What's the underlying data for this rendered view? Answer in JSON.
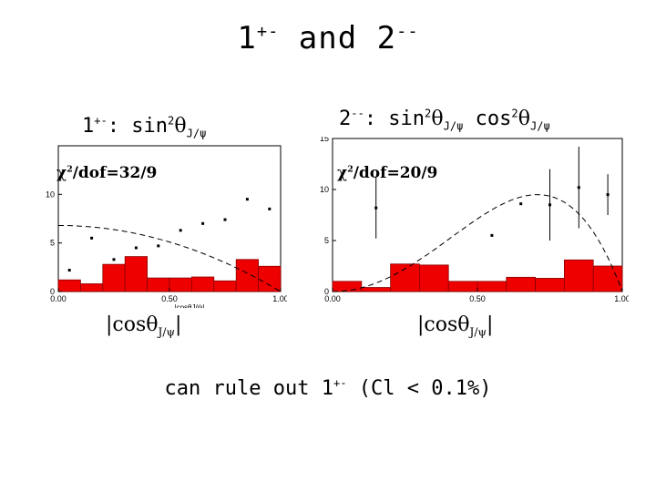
{
  "slide": {
    "title_part1": "1",
    "title_sup1": "+-",
    "title_and": " and 2",
    "title_sup2": "--"
  },
  "left": {
    "label_prefix": "1",
    "label_sup": "+-",
    "label_mid": ": sin",
    "label_sup2": "2",
    "label_theta": "θ",
    "label_sub": "J/ψ",
    "chi_prefix": "χ",
    "chi_sup": "2",
    "chi_rest": "/dof=32/9",
    "axis_cos": "|cosθ",
    "axis_sub": "J/ψ",
    "axis_end": "|"
  },
  "right": {
    "label_prefix": "2",
    "label_sup": "--",
    "label_mid": ": sin",
    "label_sup2": "2",
    "label_theta": "θ",
    "label_sub": "J/ψ",
    "label_cos": " cos",
    "label_sup3": "2",
    "label_theta2": "θ",
    "label_sub2": "J/ψ",
    "chi_prefix": "χ",
    "chi_sup": "2",
    "chi_rest": "/dof=20/9",
    "axis_cos": "|cosθ",
    "axis_sub": "J/ψ",
    "axis_end": "|"
  },
  "conclusion": {
    "text_before": "can rule out 1",
    "sup": "+-",
    "text_after": " (Cl < 0.1%)"
  },
  "chart_data": [
    {
      "type": "bar",
      "xlabel": "|cosθJ/ψ|",
      "xlim": [
        0,
        1
      ],
      "ylim": [
        0,
        15
      ],
      "xticks": [
        "0.00",
        "0.50",
        "1.00"
      ],
      "yticks": [
        "0",
        "5",
        "10"
      ],
      "bin_edges": [
        0,
        0.1,
        0.2,
        0.3,
        0.4,
        0.5,
        0.6,
        0.7,
        0.8,
        0.9,
        1.0
      ],
      "histogram": [
        1.2,
        0.8,
        2.8,
        3.6,
        1.4,
        1.4,
        1.5,
        1.1,
        3.3,
        2.6
      ],
      "data_x": [
        0.05,
        0.15,
        0.25,
        0.35,
        0.45,
        0.55,
        0.65,
        0.75,
        0.85,
        0.95
      ],
      "data_y": [
        2.2,
        5.5,
        3.3,
        4.5,
        4.7,
        6.3,
        7.0,
        7.4,
        9.5,
        8.5
      ],
      "fit_curve": "sin2",
      "fit_scale": 6.8,
      "colors": {
        "histogram": "#ee0000",
        "frame": "#000000"
      }
    },
    {
      "type": "bar",
      "xlabel": "|cosθJ/ψ|",
      "xlim": [
        0,
        1
      ],
      "ylim": [
        0,
        15
      ],
      "xticks": [
        "0.00",
        "0.50",
        "1.00"
      ],
      "yticks": [
        "0",
        "5",
        "10",
        "15"
      ],
      "bin_edges": [
        0,
        0.1,
        0.2,
        0.3,
        0.4,
        0.5,
        0.6,
        0.7,
        0.8,
        0.9,
        1.0
      ],
      "histogram": [
        1.0,
        0.4,
        2.7,
        2.6,
        1.0,
        1.0,
        1.4,
        1.3,
        3.1,
        2.5
      ],
      "data_x": [
        0.15,
        0.55,
        0.65,
        0.75,
        0.85,
        0.95
      ],
      "data_y": [
        8.2,
        5.5,
        8.6,
        8.5,
        10.2,
        9.5
      ],
      "error_bars": [
        3.0,
        0,
        0,
        3.5,
        4.0,
        2.0
      ],
      "fit_curve": "sin2cos2",
      "fit_scale": 38,
      "colors": {
        "histogram": "#ee0000",
        "frame": "#000000"
      }
    }
  ]
}
